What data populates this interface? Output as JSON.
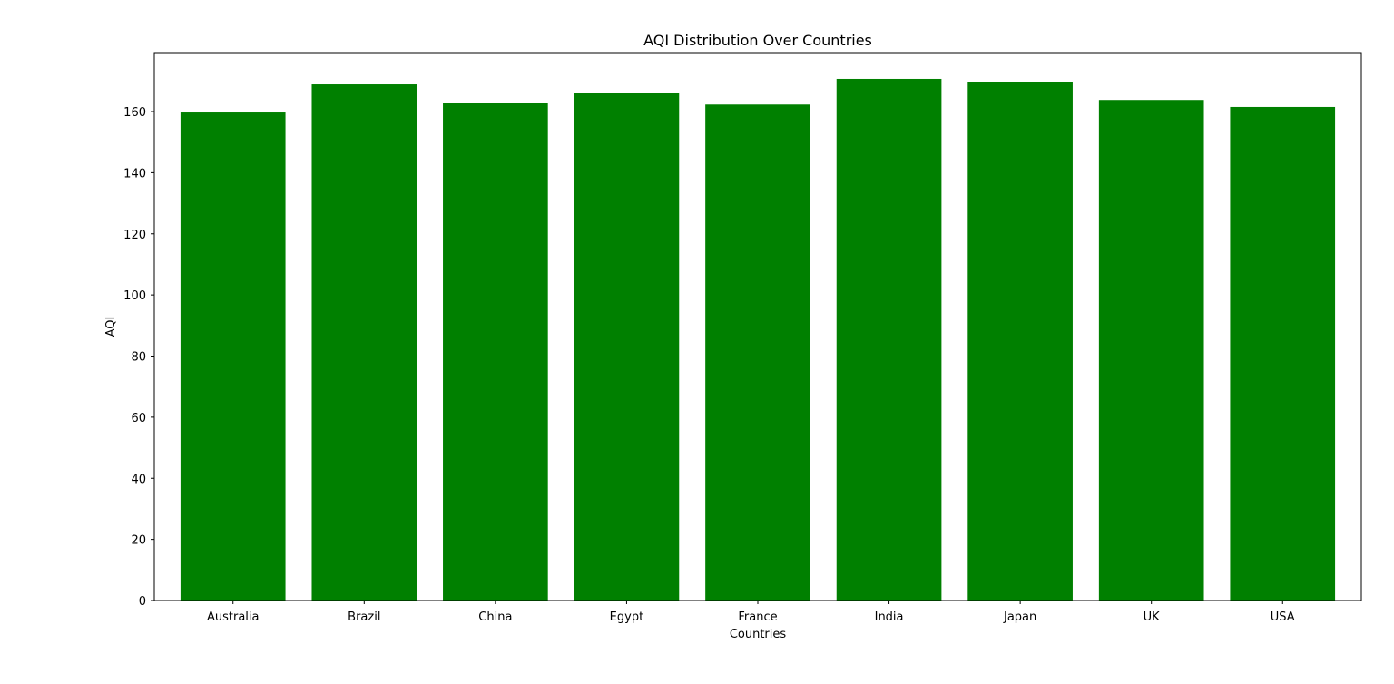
{
  "chart_data": {
    "type": "bar",
    "title": "AQI Distribution Over Countries",
    "xlabel": "Countries",
    "ylabel": "AQI",
    "categories": [
      "Australia",
      "Brazil",
      "China",
      "Egypt",
      "France",
      "India",
      "Japan",
      "UK",
      "USA"
    ],
    "values": [
      159.7,
      168.9,
      162.9,
      166.2,
      162.3,
      170.7,
      169.8,
      163.8,
      161.5
    ],
    "ylim": [
      0,
      179.3
    ],
    "yticks": [
      0,
      20,
      40,
      60,
      80,
      100,
      120,
      140,
      160
    ],
    "grid": false,
    "colors": {
      "bar": "#008000",
      "axis": "#000000",
      "background": "#ffffff"
    }
  }
}
